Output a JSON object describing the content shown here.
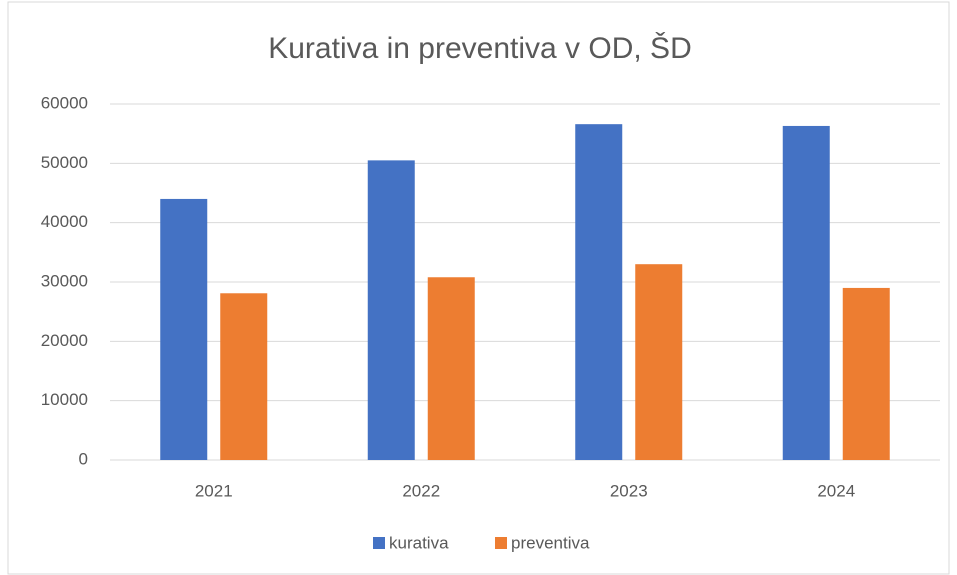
{
  "chart_data": {
    "type": "bar",
    "title": "Kurativa in preventiva v OD, ŠD",
    "categories": [
      "2021",
      "2022",
      "2023",
      "2024"
    ],
    "series": [
      {
        "name": "kurativa",
        "color": "#4472c4",
        "values": [
          44000,
          50500,
          56600,
          56300
        ]
      },
      {
        "name": "preventiva",
        "color": "#ed7d31",
        "values": [
          28100,
          30800,
          33000,
          29000
        ]
      }
    ],
    "ylim": [
      0,
      60000
    ],
    "yticks": [
      0,
      10000,
      20000,
      30000,
      40000,
      50000,
      60000
    ],
    "grid": true,
    "legend": "bottom"
  }
}
